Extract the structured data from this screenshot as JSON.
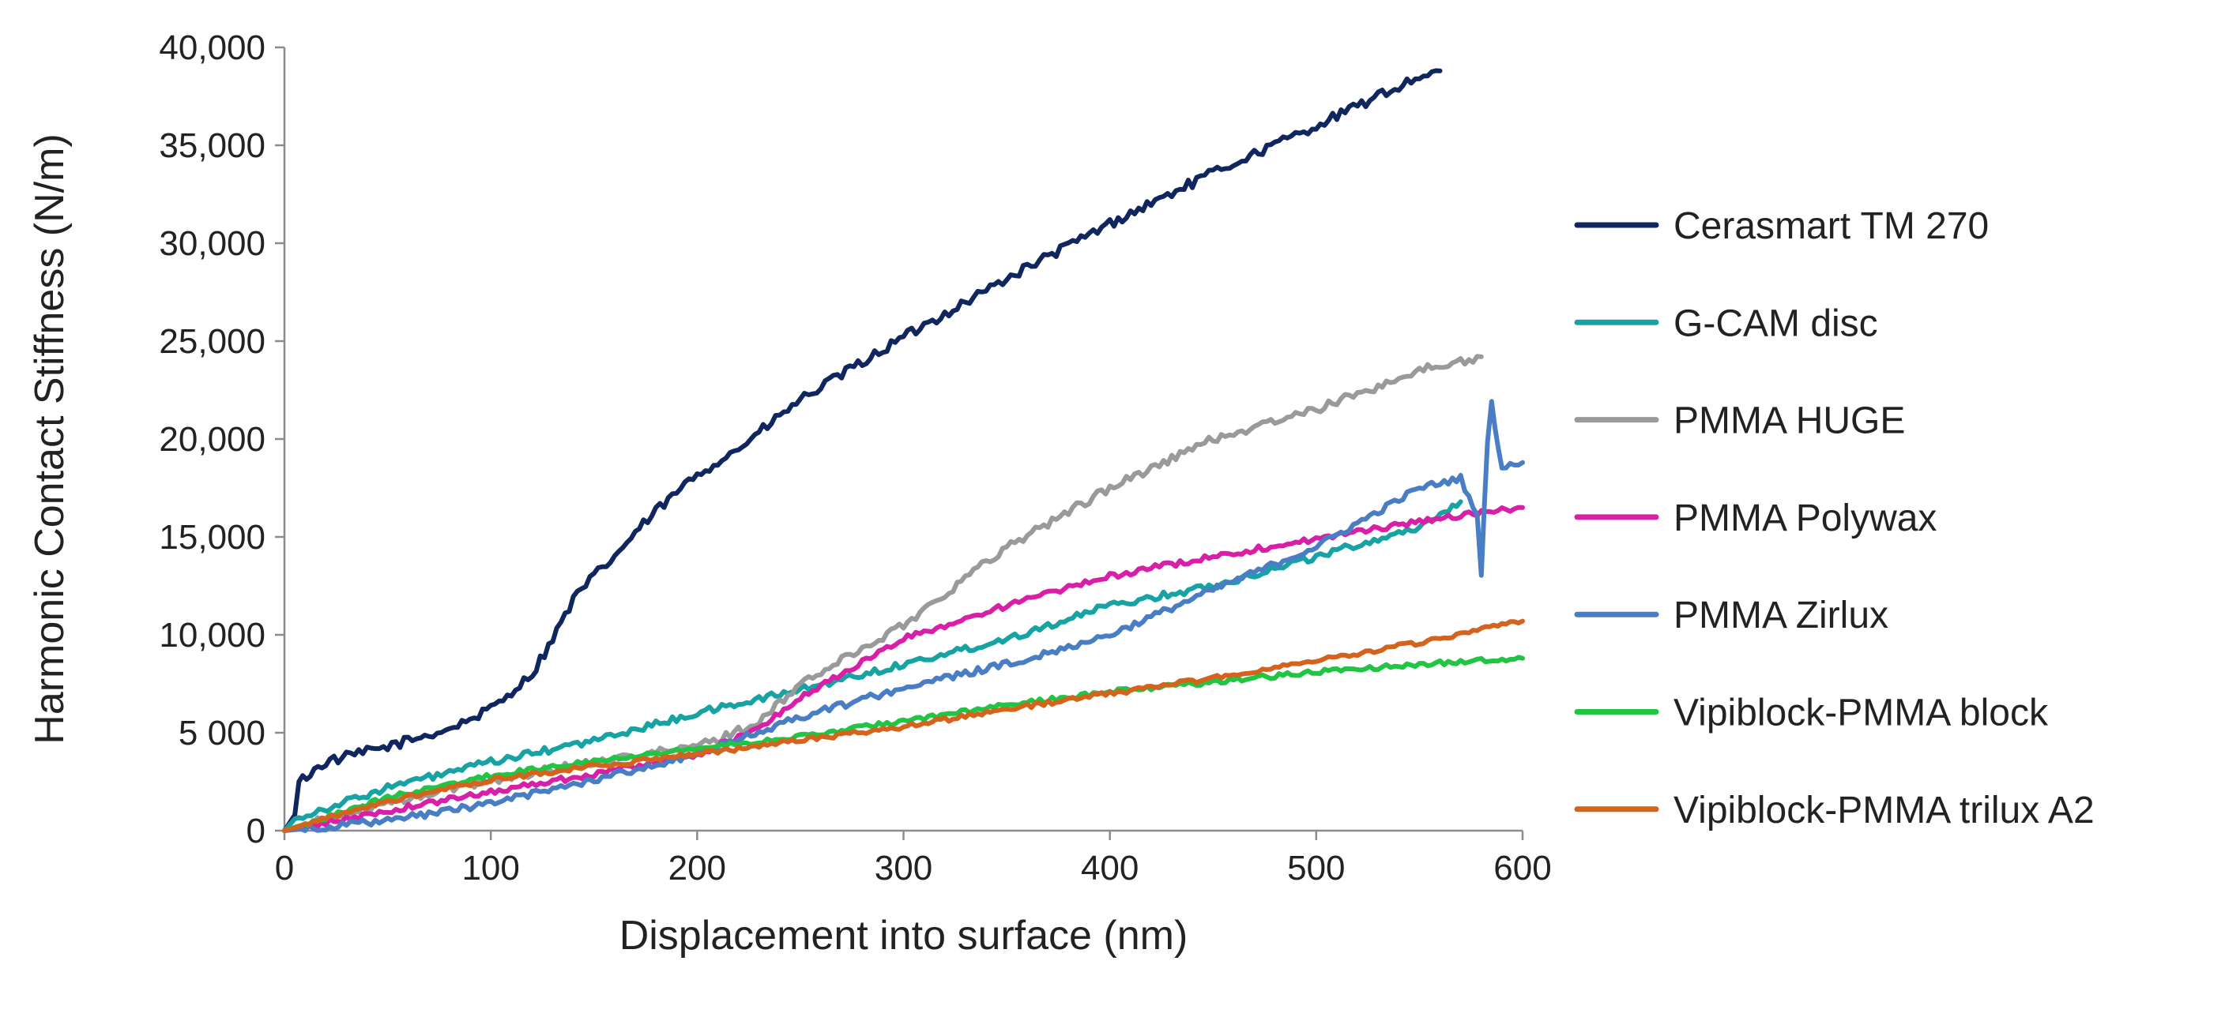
{
  "chart_data": {
    "type": "line",
    "title": "",
    "xlabel": "Displacement into surface (nm)",
    "ylabel": "Harmonic Contact Stiffness (N/m)",
    "xlim": [
      0,
      600
    ],
    "ylim": [
      0,
      40000
    ],
    "grid": false,
    "legend_position": "right",
    "x_ticks": [
      0,
      100,
      200,
      300,
      400,
      500,
      600
    ],
    "x_tick_labels": [
      "0",
      "100",
      "200",
      "300",
      "400",
      "500",
      "600"
    ],
    "y_ticks": [
      0,
      5000,
      10000,
      15000,
      20000,
      25000,
      30000,
      35000,
      40000
    ],
    "y_tick_labels": [
      "0",
      "5 000",
      "10,000",
      "15,000",
      "20,000",
      "25,000",
      "30,000",
      "35,000",
      "40,000"
    ],
    "series": [
      {
        "name": "Cerasmart TM 270",
        "color": "#10265f",
        "noise": 250,
        "x": [
          0,
          5,
          7,
          20,
          50,
          80,
          100,
          120,
          130,
          140,
          150,
          160,
          170,
          180,
          200,
          220,
          250,
          300,
          350,
          400,
          450,
          500,
          550,
          560
        ],
        "y": [
          0,
          800,
          2500,
          3500,
          4300,
          5200,
          6200,
          8000,
          9800,
          11800,
          13000,
          14000,
          15200,
          16300,
          18200,
          19500,
          22000,
          25200,
          28200,
          31000,
          33600,
          36000,
          38500,
          38800
        ]
      },
      {
        "name": "G-CAM disc",
        "color": "#17a3a3",
        "noise": 180,
        "x": [
          0,
          5,
          50,
          100,
          150,
          200,
          250,
          300,
          350,
          400,
          450,
          500,
          550,
          570
        ],
        "y": [
          0,
          600,
          2200,
          3500,
          4600,
          6000,
          7200,
          8500,
          9800,
          11500,
          12500,
          14000,
          15500,
          16800
        ]
      },
      {
        "name": "PMMA HUGE",
        "color": "#9a9a9a",
        "noise": 220,
        "x": [
          0,
          50,
          100,
          150,
          200,
          230,
          250,
          300,
          350,
          400,
          450,
          500,
          550,
          580
        ],
        "y": [
          0,
          1400,
          2600,
          3500,
          4300,
          5500,
          7500,
          10500,
          14500,
          17500,
          20000,
          21500,
          23500,
          24200
        ]
      },
      {
        "name": "PMMA Polywax",
        "color": "#d81fa8",
        "noise": 150,
        "x": [
          0,
          50,
          100,
          150,
          200,
          230,
          250,
          300,
          350,
          400,
          450,
          500,
          550,
          600
        ],
        "y": [
          0,
          1000,
          2000,
          2900,
          3900,
          5200,
          6800,
          9800,
          11500,
          13000,
          14000,
          14900,
          15800,
          16500
        ]
      },
      {
        "name": "PMMA Zirlux",
        "color": "#4a7ec4",
        "noise": 170,
        "x": [
          0,
          50,
          100,
          150,
          200,
          250,
          300,
          350,
          400,
          450,
          500,
          550,
          570,
          578,
          580,
          583,
          585,
          590,
          600
        ],
        "y": [
          0,
          500,
          1400,
          2600,
          3900,
          5800,
          7300,
          8500,
          10000,
          12300,
          14500,
          17500,
          18000,
          16000,
          13200,
          20000,
          21800,
          18500,
          18800
        ]
      },
      {
        "name": "Vipiblock-PMMA block",
        "color": "#22c443",
        "noise": 120,
        "x": [
          0,
          50,
          100,
          150,
          200,
          250,
          300,
          350,
          400,
          450,
          500,
          550,
          600
        ],
        "y": [
          0,
          1700,
          2800,
          3600,
          4200,
          4800,
          5600,
          6400,
          7100,
          7600,
          8100,
          8500,
          8800
        ]
      },
      {
        "name": "Vipiblock-PMMA trilux A2",
        "color": "#d4631e",
        "noise": 120,
        "x": [
          0,
          50,
          100,
          150,
          200,
          250,
          300,
          350,
          400,
          450,
          500,
          550,
          600
        ],
        "y": [
          0,
          1500,
          2600,
          3300,
          3900,
          4600,
          5300,
          6200,
          7000,
          7800,
          8700,
          9600,
          10700
        ]
      }
    ]
  }
}
